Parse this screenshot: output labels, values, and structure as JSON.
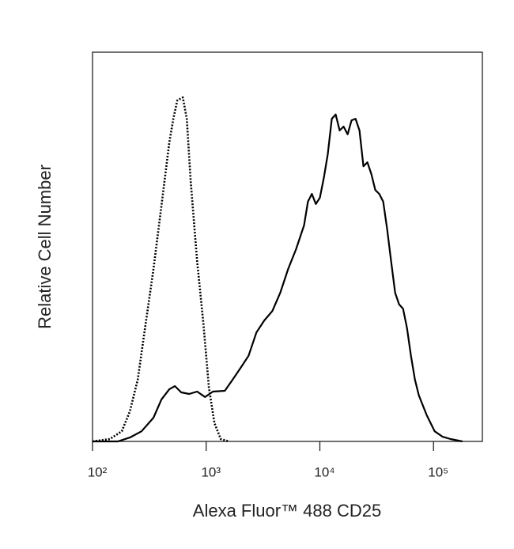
{
  "chart_data": {
    "type": "line",
    "x_label": "Alexa Fluor™ 488 CD25",
    "y_label": "Relative Cell Number",
    "xscale": "log",
    "xlim": [
      100,
      269000
    ],
    "ylim": [
      0,
      100
    ],
    "xticks": [
      {
        "value": 100,
        "label": "10²"
      },
      {
        "value": 1000,
        "label": "10³"
      },
      {
        "value": 10000,
        "label": "10⁴"
      },
      {
        "value": 100000,
        "label": "10⁵"
      }
    ],
    "series": [
      {
        "color": "#000000",
        "style": "solid",
        "x": [
          100,
          167,
          213,
          270,
          344,
          404,
          474,
          531,
          603,
          708,
          832,
          977,
          1147,
          1459,
          1712,
          2010,
          2360,
          2770,
          3251,
          3818,
          4483,
          5263,
          6180,
          7256,
          7857,
          8511,
          9225,
          10000,
          10840,
          11740,
          12730,
          13780,
          14930,
          16180,
          17540,
          19000,
          20590,
          22300,
          24170,
          26190,
          28380,
          30750,
          33320,
          36100,
          39120,
          42390,
          45930,
          49770,
          53930,
          58440,
          63300,
          68600,
          74330,
          87260,
          102400,
          120200,
          141200,
          179600
        ],
        "values": [
          0,
          0,
          1.0,
          2.6,
          6.1,
          10.8,
          13.4,
          14.2,
          12.6,
          12.2,
          12.8,
          11.4,
          12.8,
          13.0,
          15.9,
          18.9,
          22.0,
          28.0,
          31.1,
          33.5,
          38.2,
          44.3,
          49.4,
          55.5,
          61.6,
          63.6,
          61.0,
          62.6,
          67.7,
          73.8,
          82.9,
          84.0,
          79.9,
          80.9,
          78.9,
          82.5,
          82.9,
          79.9,
          70.7,
          71.7,
          68.7,
          64.6,
          63.6,
          61.6,
          54.5,
          46.3,
          38.2,
          35.2,
          34.1,
          29.1,
          22.0,
          15.9,
          11.8,
          6.7,
          2.6,
          1.2,
          0.6,
          0
        ]
      },
      {
        "color": "#000000",
        "style": "dotted",
        "x": [
          100,
          142,
          181,
          213,
          250,
          293,
          344,
          404,
          474,
          514,
          557,
          623,
          675,
          731,
          832,
          946,
          1057,
          1183,
          1345,
          1580
        ],
        "values": [
          0,
          0.6,
          2.6,
          7.7,
          15.9,
          30.1,
          44.3,
          60.6,
          76.8,
          82.9,
          87.6,
          88.4,
          82.9,
          66.7,
          46.3,
          30.1,
          13.8,
          4.7,
          0.6,
          0
        ]
      }
    ]
  }
}
